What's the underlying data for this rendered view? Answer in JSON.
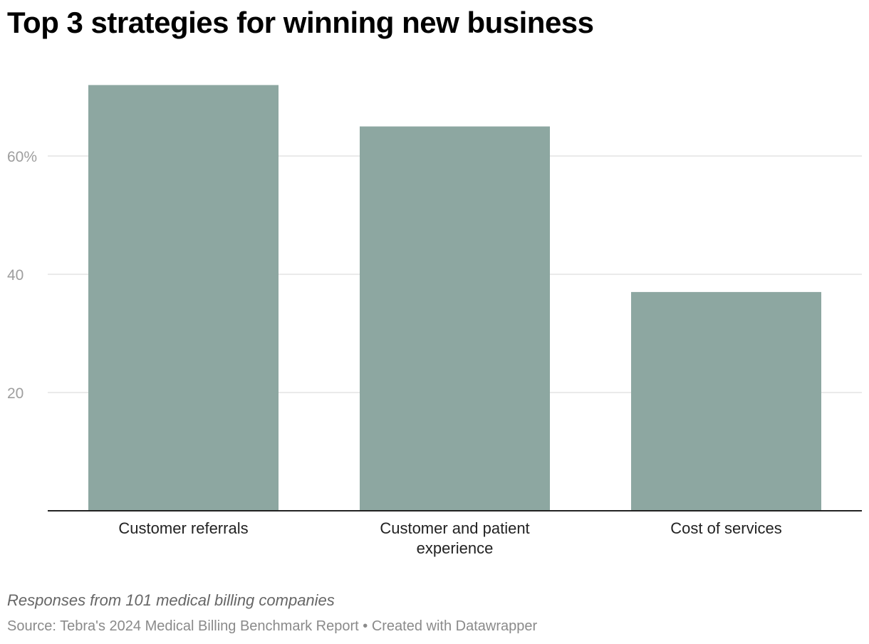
{
  "title": "Top 3 strategies for winning new business",
  "notes": "Responses from 101 medical billing companies",
  "source": "Source: Tebra's 2024 Medical Billing Benchmark Report • Created with Datawrapper",
  "colors": {
    "bar": "#8da7a1",
    "grid": "#e3e3e3",
    "axis": "#222222"
  },
  "chart_data": {
    "type": "bar",
    "categories": [
      "Customer referrals",
      "Customer and patient experience",
      "Cost of services"
    ],
    "category_label_lines": [
      [
        "Customer referrals"
      ],
      [
        "Customer and patient",
        "experience"
      ],
      [
        "Cost of services"
      ]
    ],
    "values": [
      72,
      65,
      37
    ],
    "yticks": [
      20,
      40,
      60
    ],
    "ytick_labels": [
      "20",
      "40",
      "60%"
    ],
    "ylim": [
      0,
      72
    ],
    "grid": true
  }
}
